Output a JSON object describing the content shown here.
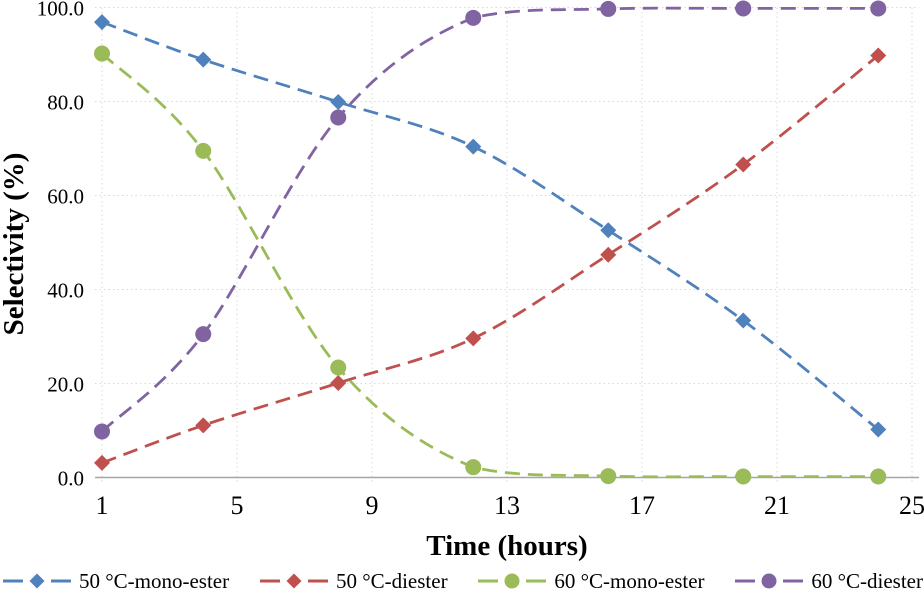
{
  "page": {
    "background": "#FFFFFF"
  },
  "chart": {
    "x_ticks": [
      "1",
      "5",
      "9",
      "13",
      "17",
      "21",
      "25"
    ],
    "y_ticks": [
      "0.0",
      "20.0",
      "40.0",
      "60.0",
      "80.0",
      "100.0"
    ]
  },
  "colors": {
    "grid": "#D9D9D9",
    "axis": "#A6A6A6",
    "text": "#000000",
    "series_blue": "#4F81BD",
    "series_red": "#C0504D",
    "series_green": "#9BBB59",
    "series_purple": "#8064A2"
  },
  "chart_data": {
    "type": "line",
    "title": "",
    "xlabel": "Time (hours)",
    "ylabel": "Selectivity (%)",
    "xlim": [
      1,
      25
    ],
    "ylim": [
      0,
      100
    ],
    "x_tick_values": [
      1,
      5,
      9,
      13,
      17,
      21,
      25
    ],
    "y_tick_values": [
      0,
      20,
      40,
      60,
      80,
      100
    ],
    "grid": true,
    "legend_position": "bottom",
    "line_style": "dashed-smooth",
    "x": [
      1,
      4,
      8,
      12,
      16,
      20,
      24
    ],
    "series": [
      {
        "name": "50 °C-mono-ester",
        "color": "#4F81BD",
        "marker": "diamond",
        "values": [
          96.9,
          88.9,
          79.9,
          70.4,
          52.6,
          33.4,
          10.2
        ]
      },
      {
        "name": "50 °C-diester",
        "color": "#C0504D",
        "marker": "diamond",
        "values": [
          3.1,
          11.1,
          20.1,
          29.6,
          47.4,
          66.6,
          89.8
        ]
      },
      {
        "name": "60 °C-mono-ester",
        "color": "#9BBB59",
        "marker": "circle",
        "values": [
          90.2,
          69.5,
          23.4,
          2.2,
          0.3,
          0.2,
          0.2
        ]
      },
      {
        "name": "60 °C-diester",
        "color": "#8064A2",
        "marker": "circle",
        "values": [
          9.8,
          30.5,
          76.6,
          97.8,
          99.7,
          99.8,
          99.8
        ]
      }
    ]
  }
}
